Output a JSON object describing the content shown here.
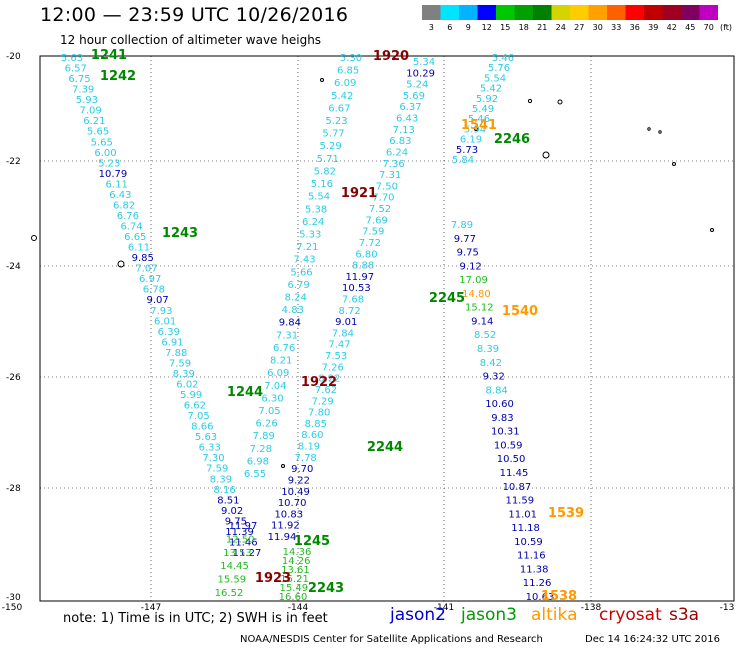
{
  "title": "12:00 — 23:59 UTC 10/26/2016",
  "subtitle": "12 hour collection of altimeter wave heighs",
  "note": "note:  1) Time is in UTC;  2) SWH is in feet",
  "credit": "NOAA/NESDIS Center for Satellite Applications and Research",
  "date": "Dec 14 16:24:32 UTC 2016",
  "colorbar": {
    "labels": [
      "3",
      "6",
      "9",
      "12",
      "15",
      "18",
      "21",
      "24",
      "27",
      "30",
      "33",
      "36",
      "39",
      "42",
      "45",
      "70"
    ],
    "unit": "(ft)",
    "colors": [
      "#808080",
      "#00e5ff",
      "#00b4ff",
      "#0000ff",
      "#00c800",
      "#00a000",
      "#008000",
      "#d4d400",
      "#ffcc00",
      "#ffa000",
      "#ff6000",
      "#ff0000",
      "#c00000",
      "#a00020",
      "#800060",
      "#c000c0"
    ]
  },
  "satellites": [
    {
      "name": "jason2",
      "color": "#0000cc"
    },
    {
      "name": "jason3",
      "color": "#009900"
    },
    {
      "name": "altika",
      "color": "#ff9900"
    },
    {
      "name": "cryosat",
      "color": "#cc0000"
    },
    {
      "name": "s3a",
      "color": "#990000"
    }
  ],
  "axes": {
    "lon_ticks": [
      "-150",
      "-147",
      "-144",
      "-141",
      "-138",
      "-13"
    ],
    "lat_ticks": [
      "-20",
      "-22",
      "-24",
      "-26",
      "-28",
      "-30"
    ]
  },
  "colors": {
    "light": "#2ccce4",
    "blue": "#0000aa",
    "green": "#22bb22",
    "orange": "#ff9900",
    "darkred": "#880000",
    "darkgreen": "#008800"
  },
  "pass_labels": [
    {
      "t": "1241",
      "c": "darkgreen"
    },
    {
      "t": "1242",
      "c": "darkgreen"
    },
    {
      "t": "1243",
      "c": "darkgreen"
    },
    {
      "t": "1244",
      "c": "darkgreen"
    },
    {
      "t": "1245",
      "c": "darkgreen"
    },
    {
      "t": "1920",
      "c": "darkred"
    },
    {
      "t": "1921",
      "c": "darkred"
    },
    {
      "t": "1922",
      "c": "darkred"
    },
    {
      "t": "1923",
      "c": "darkred"
    },
    {
      "t": "2246",
      "c": "darkgreen"
    },
    {
      "t": "2245",
      "c": "darkgreen"
    },
    {
      "t": "2244",
      "c": "darkgreen"
    },
    {
      "t": "2243",
      "c": "darkgreen"
    },
    {
      "t": "1541",
      "c": "orange"
    },
    {
      "t": "1540",
      "c": "orange"
    },
    {
      "t": "1539",
      "c": "orange"
    },
    {
      "t": "1538",
      "c": "orange"
    }
  ],
  "track_a": [
    {
      "v": "5.63",
      "c": "light"
    },
    {
      "v": "6.57",
      "c": "light"
    },
    {
      "v": "6.75",
      "c": "light"
    },
    {
      "v": "7.39",
      "c": "light"
    },
    {
      "v": "5.93",
      "c": "light"
    },
    {
      "v": "7.09",
      "c": "light"
    },
    {
      "v": "6.21",
      "c": "light"
    },
    {
      "v": "5.65",
      "c": "light"
    },
    {
      "v": "5.65",
      "c": "light"
    },
    {
      "v": "6.00",
      "c": "light"
    },
    {
      "v": "5.23",
      "c": "light"
    },
    {
      "v": "10.79",
      "c": "blue"
    },
    {
      "v": "6.11",
      "c": "light"
    },
    {
      "v": "6.43",
      "c": "light"
    },
    {
      "v": "6.82",
      "c": "light"
    },
    {
      "v": "6.76",
      "c": "light"
    },
    {
      "v": "6.74",
      "c": "light"
    },
    {
      "v": "6.65",
      "c": "light"
    },
    {
      "v": "6.11",
      "c": "light"
    },
    {
      "v": "9.85",
      "c": "blue"
    },
    {
      "v": "7.07",
      "c": "light"
    },
    {
      "v": "6.97",
      "c": "light"
    },
    {
      "v": "6.78",
      "c": "light"
    },
    {
      "v": "9.07",
      "c": "blue"
    },
    {
      "v": "7.93",
      "c": "light"
    },
    {
      "v": "6.01",
      "c": "light"
    },
    {
      "v": "6.39",
      "c": "light"
    },
    {
      "v": "6.91",
      "c": "light"
    },
    {
      "v": "7.88",
      "c": "light"
    },
    {
      "v": "7.59",
      "c": "light"
    },
    {
      "v": "8.39",
      "c": "light"
    },
    {
      "v": "6.02",
      "c": "light"
    },
    {
      "v": "5.99",
      "c": "light"
    },
    {
      "v": "6.62",
      "c": "light"
    },
    {
      "v": "7.05",
      "c": "light"
    },
    {
      "v": "8.66",
      "c": "light"
    },
    {
      "v": "5.63",
      "c": "light"
    },
    {
      "v": "6.33",
      "c": "light"
    },
    {
      "v": "7.30",
      "c": "light"
    },
    {
      "v": "7.59",
      "c": "light"
    },
    {
      "v": "8.39",
      "c": "light"
    },
    {
      "v": "8.16",
      "c": "light"
    },
    {
      "v": "8.51",
      "c": "blue"
    },
    {
      "v": "9.02",
      "c": "blue"
    },
    {
      "v": "9.75",
      "c": "blue"
    },
    {
      "v": "11.39",
      "c": "blue"
    },
    {
      "v": "11.46",
      "c": "blue"
    },
    {
      "v": "11.27",
      "c": "blue"
    }
  ],
  "track_a_green": [
    {
      "v": "11.97",
      "c": "blue"
    },
    {
      "v": "12.50",
      "c": "green"
    },
    {
      "v": "13.53",
      "c": "green"
    },
    {
      "v": "14.45",
      "c": "green"
    },
    {
      "v": "15.59",
      "c": "green"
    },
    {
      "v": "16.52",
      "c": "green"
    }
  ],
  "track_b": [
    {
      "v": "5.30",
      "c": "light"
    },
    {
      "v": "6.85",
      "c": "light"
    },
    {
      "v": "6.09",
      "c": "light"
    },
    {
      "v": "5.42",
      "c": "light"
    },
    {
      "v": "6.67",
      "c": "light"
    },
    {
      "v": "5.23",
      "c": "light"
    },
    {
      "v": "5.77",
      "c": "light"
    },
    {
      "v": "5.29",
      "c": "light"
    },
    {
      "v": "5.71",
      "c": "light"
    },
    {
      "v": "5.82",
      "c": "light"
    },
    {
      "v": "5.16",
      "c": "light"
    },
    {
      "v": "5.54",
      "c": "light"
    },
    {
      "v": "5.38",
      "c": "light"
    },
    {
      "v": "6.24",
      "c": "light"
    },
    {
      "v": "5.33",
      "c": "light"
    },
    {
      "v": "7.21",
      "c": "light"
    },
    {
      "v": "7.43",
      "c": "light"
    },
    {
      "v": "5.66",
      "c": "light"
    },
    {
      "v": "6.79",
      "c": "light"
    },
    {
      "v": "8.24",
      "c": "light"
    },
    {
      "v": "4.83",
      "c": "light"
    },
    {
      "v": "9.84",
      "c": "blue"
    },
    {
      "v": "7.31",
      "c": "light"
    },
    {
      "v": "6.76",
      "c": "light"
    },
    {
      "v": "8.21",
      "c": "light"
    },
    {
      "v": "6.09",
      "c": "light"
    },
    {
      "v": "7.04",
      "c": "light"
    },
    {
      "v": "6.30",
      "c": "light"
    },
    {
      "v": "7.05",
      "c": "light"
    },
    {
      "v": "6.26",
      "c": "light"
    },
    {
      "v": "7.89",
      "c": "light"
    },
    {
      "v": "7.28",
      "c": "light"
    },
    {
      "v": "6.98",
      "c": "light"
    },
    {
      "v": "6.55",
      "c": "light"
    }
  ],
  "track_c": [
    {
      "v": "5.34",
      "c": "light"
    },
    {
      "v": "10.29",
      "c": "blue"
    },
    {
      "v": "5.24",
      "c": "light"
    },
    {
      "v": "5.69",
      "c": "light"
    },
    {
      "v": "6.37",
      "c": "light"
    },
    {
      "v": "6.43",
      "c": "light"
    },
    {
      "v": "7.13",
      "c": "light"
    },
    {
      "v": "6.83",
      "c": "light"
    },
    {
      "v": "6.24",
      "c": "light"
    },
    {
      "v": "7.36",
      "c": "light"
    },
    {
      "v": "7.31",
      "c": "light"
    },
    {
      "v": "7.50",
      "c": "light"
    },
    {
      "v": "7.70",
      "c": "light"
    },
    {
      "v": "7.52",
      "c": "light"
    },
    {
      "v": "7.69",
      "c": "light"
    },
    {
      "v": "7.59",
      "c": "light"
    },
    {
      "v": "7.72",
      "c": "light"
    },
    {
      "v": "6.80",
      "c": "light"
    },
    {
      "v": "8.88",
      "c": "light"
    },
    {
      "v": "11.97",
      "c": "blue"
    },
    {
      "v": "10.53",
      "c": "blue"
    },
    {
      "v": "7.68",
      "c": "light"
    },
    {
      "v": "8.72",
      "c": "light"
    },
    {
      "v": "9.01",
      "c": "blue"
    },
    {
      "v": "7.84",
      "c": "light"
    },
    {
      "v": "7.47",
      "c": "light"
    },
    {
      "v": "7.53",
      "c": "light"
    },
    {
      "v": "7.26",
      "c": "light"
    },
    {
      "v": "8.22",
      "c": "light"
    },
    {
      "v": "7.62",
      "c": "light"
    },
    {
      "v": "7.29",
      "c": "light"
    },
    {
      "v": "7.80",
      "c": "light"
    },
    {
      "v": "8.85",
      "c": "light"
    },
    {
      "v": "8.60",
      "c": "light"
    },
    {
      "v": "8.19",
      "c": "light"
    },
    {
      "v": "7.78",
      "c": "light"
    },
    {
      "v": "9.70",
      "c": "blue"
    },
    {
      "v": "9.22",
      "c": "blue"
    },
    {
      "v": "10.49",
      "c": "blue"
    },
    {
      "v": "10.70",
      "c": "blue"
    },
    {
      "v": "10.83",
      "c": "blue"
    },
    {
      "v": "11.92",
      "c": "blue"
    },
    {
      "v": "11.94",
      "c": "blue"
    }
  ],
  "track_c_green": [
    {
      "v": "14.36",
      "c": "green"
    },
    {
      "v": "14.26",
      "c": "green"
    },
    {
      "v": "13.61",
      "c": "green"
    },
    {
      "v": "15.21",
      "c": "green"
    },
    {
      "v": "15.49",
      "c": "green"
    },
    {
      "v": "16.60",
      "c": "green"
    }
  ],
  "track_d": [
    {
      "v": "5.46",
      "c": "light"
    },
    {
      "v": "5.76",
      "c": "light"
    },
    {
      "v": "5.54",
      "c": "light"
    },
    {
      "v": "5.42",
      "c": "light"
    },
    {
      "v": "5.92",
      "c": "light"
    },
    {
      "v": "5.49",
      "c": "light"
    },
    {
      "v": "5.46",
      "c": "light"
    },
    {
      "v": "5.94",
      "c": "light"
    },
    {
      "v": "6.19",
      "c": "light"
    },
    {
      "v": "5.73",
      "c": "blue"
    },
    {
      "v": "5.84",
      "c": "light"
    }
  ],
  "track_e": [
    {
      "v": "7.89",
      "c": "light"
    },
    {
      "v": "9.77",
      "c": "blue"
    },
    {
      "v": "9.75",
      "c": "blue"
    },
    {
      "v": "9.12",
      "c": "blue"
    },
    {
      "v": "17.09",
      "c": "green"
    },
    {
      "v": "14.80",
      "c": "orange"
    },
    {
      "v": "15.12",
      "c": "green"
    },
    {
      "v": "9.14",
      "c": "blue"
    },
    {
      "v": "8.52",
      "c": "light"
    },
    {
      "v": "8.39",
      "c": "light"
    },
    {
      "v": "8.42",
      "c": "light"
    },
    {
      "v": "9.32",
      "c": "blue"
    },
    {
      "v": "8.84",
      "c": "light"
    },
    {
      "v": "10.60",
      "c": "blue"
    },
    {
      "v": "9.83",
      "c": "blue"
    },
    {
      "v": "10.31",
      "c": "blue"
    },
    {
      "v": "10.59",
      "c": "blue"
    },
    {
      "v": "10.50",
      "c": "blue"
    },
    {
      "v": "11.45",
      "c": "blue"
    },
    {
      "v": "10.87",
      "c": "blue"
    },
    {
      "v": "11.59",
      "c": "blue"
    },
    {
      "v": "11.01",
      "c": "blue"
    },
    {
      "v": "11.18",
      "c": "blue"
    },
    {
      "v": "10.59",
      "c": "blue"
    },
    {
      "v": "11.16",
      "c": "blue"
    },
    {
      "v": "11.38",
      "c": "blue"
    },
    {
      "v": "11.26",
      "c": "blue"
    },
    {
      "v": "10.63",
      "c": "blue"
    }
  ]
}
